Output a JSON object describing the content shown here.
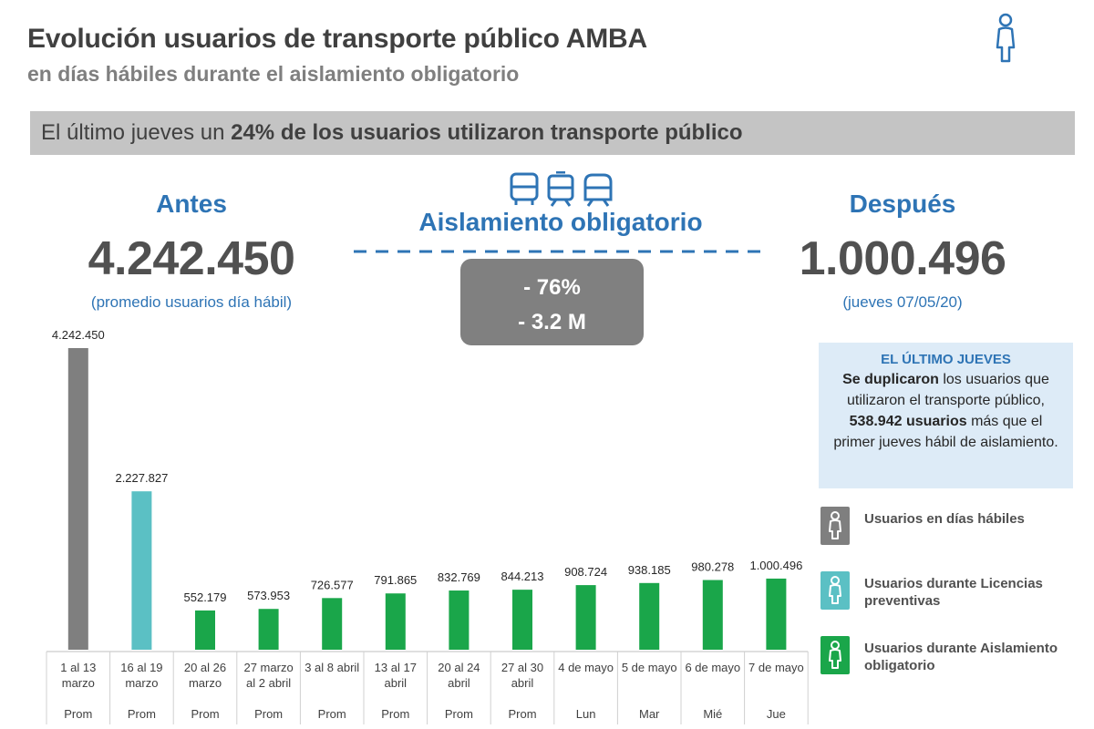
{
  "header": {
    "title": "Evolución usuarios de transporte público AMBA",
    "subtitle": "en días hábiles durante el aislamiento obligatorio"
  },
  "banner": {
    "prefix": "El último jueves un ",
    "highlight": "24% de los usuarios utilizaron transporte público"
  },
  "before": {
    "label": "Antes",
    "value": "4.242.450",
    "note": "(promedio usuarios día hábil)"
  },
  "after": {
    "label": "Después",
    "value": "1.000.496",
    "note": "(jueves 07/05/20)"
  },
  "isolation": {
    "label": "Aislamiento obligatorio",
    "drop_pct": "- 76%",
    "drop_abs": "- 3.2 M"
  },
  "info_box": {
    "title": "EL ÚLTIMO JUEVES",
    "bold1": "Se duplicaron",
    "text1": " los usuarios que utilizaron el transporte público, ",
    "bold2": "538.942 usuarios",
    "text2": " más que el primer jueves hábil de aislamiento."
  },
  "legend": [
    {
      "label": "Usuarios en días hábiles",
      "color": "#7f7f7f"
    },
    {
      "label": "Usuarios durante Licencias preventivas",
      "color": "#5bc0c4"
    },
    {
      "label": "Usuarios durante Aislamiento obligatorio",
      "color": "#1aa64a"
    }
  ],
  "colors": {
    "accent_blue": "#2e74b5",
    "gray": "#7f7f7f",
    "teal": "#5bc0c4",
    "green": "#1aa64a"
  },
  "icons": [
    "person-icon",
    "bus-icon",
    "train-icon",
    "metro-icon"
  ],
  "chart_data": {
    "type": "bar",
    "title": "",
    "xlabel": "",
    "ylabel": "",
    "ylim": [
      0,
      4242450
    ],
    "categories": [
      [
        "1 al 13",
        "marzo"
      ],
      [
        "16 al 19",
        "marzo"
      ],
      [
        "20 al 26",
        "marzo"
      ],
      [
        "27 marzo",
        "al 2 abril"
      ],
      [
        "3 al 8 abril"
      ],
      [
        "13 al 17",
        "abril"
      ],
      [
        "20 al 24",
        "abril"
      ],
      [
        "27 al 30",
        "abril"
      ],
      [
        "4 de mayo"
      ],
      [
        "5 de mayo"
      ],
      [
        "6 de mayo"
      ],
      [
        "7 de mayo"
      ]
    ],
    "sub_labels": [
      "Prom",
      "Prom",
      "Prom",
      "Prom",
      "Prom",
      "Prom",
      "Prom",
      "Prom",
      "Lun",
      "Mar",
      "Mié",
      "Jue"
    ],
    "values": [
      4242450,
      2227827,
      552179,
      573953,
      726577,
      791865,
      832769,
      844213,
      908724,
      938185,
      980278,
      1000496
    ],
    "value_labels": [
      "4.242.450",
      "2.227.827",
      "552.179",
      "573.953",
      "726.577",
      "791.865",
      "832.769",
      "844.213",
      "908.724",
      "938.185",
      "980.278",
      "1.000.496"
    ],
    "bar_groups": [
      "gray",
      "teal",
      "green",
      "green",
      "green",
      "green",
      "green",
      "green",
      "green",
      "green",
      "green",
      "green"
    ]
  }
}
